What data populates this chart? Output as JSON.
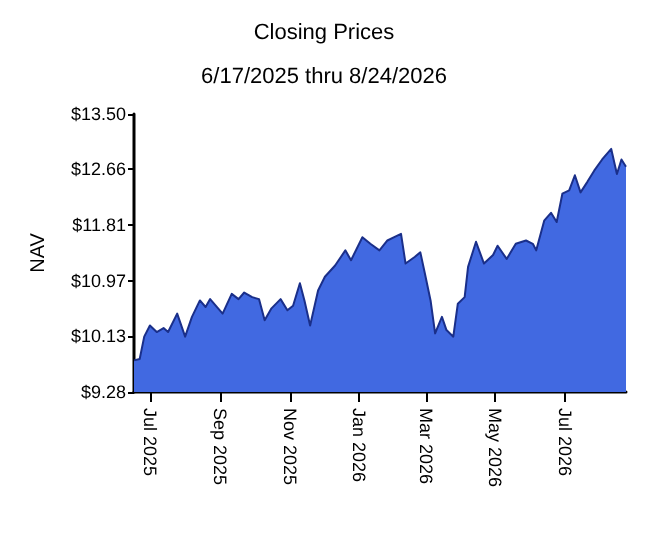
{
  "chart_data": {
    "type": "area",
    "title": "Closing Prices",
    "subtitle": "6/17/2025 thru 8/24/2026",
    "ylabel": "NAV",
    "x": [
      "2025-06-17",
      "2025-06-22",
      "2025-06-26",
      "2025-07-01",
      "2025-07-07",
      "2025-07-13",
      "2025-07-17",
      "2025-07-25",
      "2025-08-01",
      "2025-08-07",
      "2025-08-14",
      "2025-08-19",
      "2025-08-23",
      "2025-09-03",
      "2025-09-11",
      "2025-09-17",
      "2025-09-22",
      "2025-09-29",
      "2025-10-05",
      "2025-10-10",
      "2025-10-16",
      "2025-10-24",
      "2025-10-30",
      "2025-11-04",
      "2025-11-10",
      "2025-11-14",
      "2025-11-19",
      "2025-11-26",
      "2025-12-02",
      "2025-12-11",
      "2025-12-20",
      "2025-12-25",
      "2026-01-04",
      "2026-01-11",
      "2026-01-19",
      "2026-01-26",
      "2026-02-01",
      "2026-02-07",
      "2026-02-11",
      "2026-02-19",
      "2026-02-24",
      "2026-02-28",
      "2026-03-05",
      "2026-03-09",
      "2026-03-15",
      "2026-03-19",
      "2026-03-25",
      "2026-03-29",
      "2026-04-04",
      "2026-04-07",
      "2026-04-14",
      "2026-04-21",
      "2026-04-29",
      "2026-05-03",
      "2026-05-11",
      "2026-05-19",
      "2026-05-28",
      "2026-06-03",
      "2026-06-06",
      "2026-06-13",
      "2026-06-19",
      "2026-06-24",
      "2026-06-29",
      "2026-07-05",
      "2026-07-10",
      "2026-07-15",
      "2026-07-21",
      "2026-07-27",
      "2026-08-03",
      "2026-08-11",
      "2026-08-16",
      "2026-08-20",
      "2026-08-24"
    ],
    "series": [
      {
        "color": "#4169e1",
        "values": [
          9.76,
          9.78,
          10.12,
          10.29,
          10.19,
          10.25,
          10.19,
          10.47,
          10.12,
          10.42,
          10.67,
          10.57,
          10.69,
          10.47,
          10.77,
          10.69,
          10.79,
          10.72,
          10.69,
          10.37,
          10.55,
          10.69,
          10.52,
          10.59,
          10.93,
          10.67,
          10.29,
          10.82,
          11.03,
          11.2,
          11.43,
          11.28,
          11.63,
          11.53,
          11.43,
          11.58,
          11.63,
          11.68,
          11.23,
          11.33,
          11.4,
          11.08,
          10.67,
          10.17,
          10.42,
          10.22,
          10.12,
          10.62,
          10.72,
          11.18,
          11.56,
          11.23,
          11.36,
          11.5,
          11.3,
          11.53,
          11.58,
          11.53,
          11.43,
          11.88,
          12.0,
          11.86,
          12.29,
          12.34,
          12.57,
          12.31,
          12.47,
          12.64,
          12.81,
          12.97,
          12.59,
          12.81,
          12.7
        ]
      }
    ],
    "xlim": [
      "2025-06-17",
      "2026-08-24"
    ],
    "xticks": [
      {
        "value": "2025-07-01",
        "label": "Jul 2025"
      },
      {
        "value": "2025-09-01",
        "label": "Sep 2025"
      },
      {
        "value": "2025-11-01",
        "label": "Nov 2025"
      },
      {
        "value": "2026-01-01",
        "label": "Jan 2026"
      },
      {
        "value": "2026-03-01",
        "label": "Mar 2026"
      },
      {
        "value": "2026-05-01",
        "label": "May 2026"
      },
      {
        "value": "2026-07-01",
        "label": "Jul 2026"
      }
    ],
    "ylim": [
      9.28,
      13.5
    ],
    "yticks": [
      {
        "value": 9.28,
        "label": "$9.28"
      },
      {
        "value": 10.13,
        "label": "$10.13"
      },
      {
        "value": 10.97,
        "label": "$10.97"
      },
      {
        "value": 11.81,
        "label": "$11.81"
      },
      {
        "value": 12.66,
        "label": "$12.66"
      },
      {
        "value": 13.5,
        "label": "$13.50"
      }
    ],
    "grid": false
  }
}
